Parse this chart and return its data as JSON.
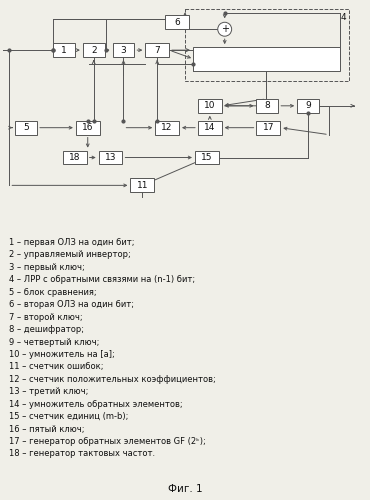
{
  "fig_width": 3.7,
  "fig_height": 5.0,
  "dpi": 100,
  "bg_color": "#f0efe8",
  "box_color": "#ffffff",
  "box_edge_color": "#555555",
  "line_color": "#555555",
  "text_color": "#111111",
  "legend_lines": [
    "1 – первая ОЛЗ на один бит;",
    "2 – управляемый инвертор;",
    "3 – первый ключ;",
    "4 – ЛРР с обратными связями на (n-1) бит;",
    "5 – блок сравнения;",
    "6 – вторая ОЛЗ на один бит;",
    "7 – второй ключ;",
    "8 – дешифратор;",
    "9 – четвертый ключ;",
    "10 – умножитель на [a];",
    "11 – счетчик ошибок;",
    "12 – счетчик положительных коэффициентов;",
    "13 – третий ключ;",
    "14 – умножитель обратных элементов;",
    "15 – счетчик единиц (m-b);",
    "16 – пятый ключ;",
    "17 – генератор обратных элементов GF (2ᵏ);",
    "18 – генератор тактовых частот."
  ],
  "fig_label": "Фиг. 1"
}
